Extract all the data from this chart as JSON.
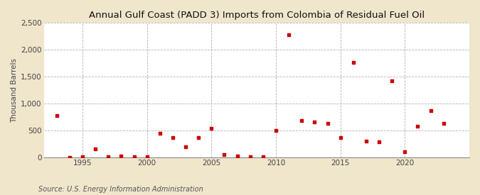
{
  "title": "Annual Gulf Coast (PADD 3) Imports from Colombia of Residual Fuel Oil",
  "ylabel": "Thousand Barrels",
  "source": "Source: U.S. Energy Information Administration",
  "background_color": "#f0e6cc",
  "plot_background_color": "#ffffff",
  "marker_color": "#cc0000",
  "xlim": [
    1992,
    2025
  ],
  "ylim": [
    0,
    2500
  ],
  "yticks": [
    0,
    500,
    1000,
    1500,
    2000,
    2500
  ],
  "xticks": [
    1995,
    2000,
    2005,
    2010,
    2015,
    2020
  ],
  "data": {
    "1993": 780,
    "1994": 10,
    "1995": 15,
    "1996": 160,
    "1997": 20,
    "1998": 30,
    "1999": 25,
    "2000": 20,
    "2001": 450,
    "2002": 370,
    "2003": 200,
    "2004": 380,
    "2005": 540,
    "2006": 60,
    "2007": 30,
    "2008": 25,
    "2009": 15,
    "2010": 510,
    "2011": 2270,
    "2012": 690,
    "2013": 660,
    "2014": 640,
    "2015": 380,
    "2016": 1760,
    "2017": 310,
    "2018": 300,
    "2019": 1420,
    "2020": 110,
    "2021": 590,
    "2022": 870,
    "2023": 630
  },
  "title_fontsize": 9.5,
  "axis_label_fontsize": 7.5,
  "tick_fontsize": 7.5,
  "source_fontsize": 7.0
}
